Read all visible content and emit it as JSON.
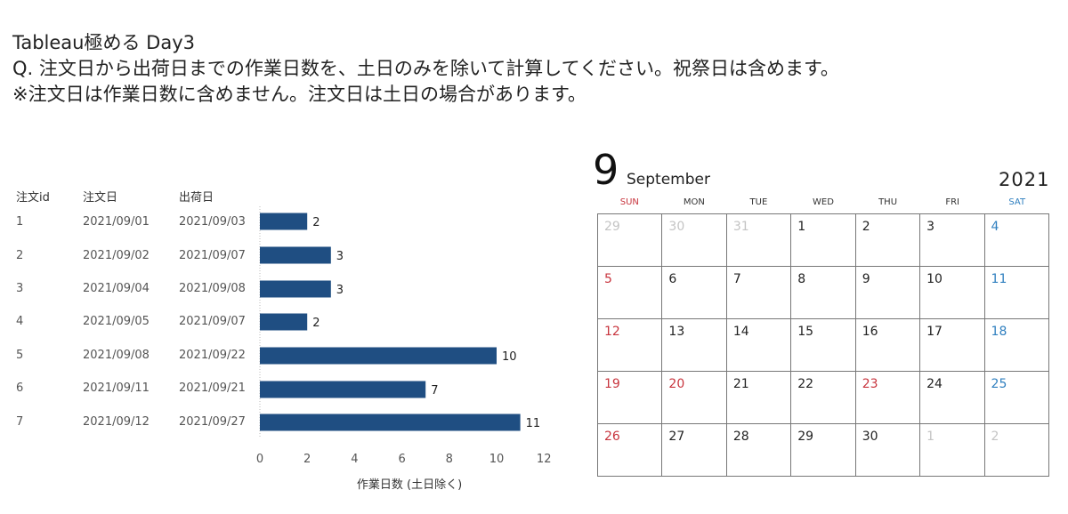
{
  "header": {
    "line1": "Tableau極める Day3",
    "line2": "Q. 注文日から出荷日までの作業日数を、土日のみを除いて計算してください。祝祭日は含めます。",
    "line3": "※注文日は作業日数に含めません。注文日は土日の場合があります。"
  },
  "table": {
    "headers": [
      "注文id",
      "注文日",
      "出荷日"
    ],
    "rows": [
      {
        "id": "1",
        "order": "2021/09/01",
        "ship": "2021/09/03"
      },
      {
        "id": "2",
        "order": "2021/09/02",
        "ship": "2021/09/07"
      },
      {
        "id": "3",
        "order": "2021/09/04",
        "ship": "2021/09/08"
      },
      {
        "id": "4",
        "order": "2021/09/05",
        "ship": "2021/09/07"
      },
      {
        "id": "5",
        "order": "2021/09/08",
        "ship": "2021/09/22"
      },
      {
        "id": "6",
        "order": "2021/09/11",
        "ship": "2021/09/21"
      },
      {
        "id": "7",
        "order": "2021/09/12",
        "ship": "2021/09/27"
      }
    ]
  },
  "chart_data": {
    "type": "bar",
    "orientation": "horizontal",
    "categories": [
      "1",
      "2",
      "3",
      "4",
      "5",
      "6",
      "7"
    ],
    "values": [
      2,
      3,
      3,
      2,
      10,
      7,
      11
    ],
    "xlabel": "作業日数 (土日除く)",
    "xlim": [
      0,
      12
    ],
    "xticks": [
      0,
      2,
      4,
      6,
      8,
      10,
      12
    ],
    "bar_color": "#1f4e82",
    "grid": false
  },
  "calendar": {
    "month_number": "9",
    "month_name": "September",
    "year": "2021",
    "weekdays": [
      "SUN",
      "MON",
      "TUE",
      "WED",
      "THU",
      "FRI",
      "SAT"
    ],
    "weeks": [
      [
        "29",
        "30",
        "31",
        "1",
        "2",
        "3",
        "4"
      ],
      [
        "5",
        "6",
        "7",
        "8",
        "9",
        "10",
        "11"
      ],
      [
        "12",
        "13",
        "14",
        "15",
        "16",
        "17",
        "18"
      ],
      [
        "19",
        "20",
        "21",
        "22",
        "23",
        "24",
        "25"
      ],
      [
        "26",
        "27",
        "28",
        "29",
        "30",
        "1",
        "2"
      ]
    ],
    "muted": [
      [
        0,
        0
      ],
      [
        0,
        1
      ],
      [
        0,
        2
      ],
      [
        4,
        5
      ],
      [
        4,
        6
      ]
    ],
    "holidays": [
      [
        3,
        1
      ],
      [
        3,
        4
      ]
    ],
    "sunday_color": "#c8353e",
    "saturday_color": "#2f7fbf"
  }
}
